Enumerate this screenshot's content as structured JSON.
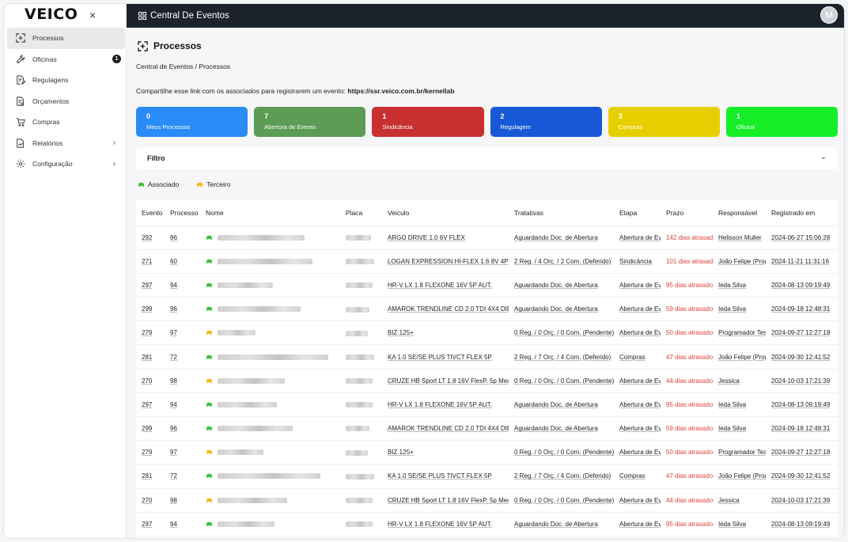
{
  "app": {
    "logo": "VEICO",
    "close_symbol": "×",
    "topbar_title": "Central De Eventos",
    "avatar_letter": "M"
  },
  "sidebar": {
    "items": [
      {
        "label": "Processos",
        "icon": "processos-icon",
        "active": true
      },
      {
        "label": "Oficinas",
        "icon": "wrench-icon",
        "badge": "1"
      },
      {
        "label": "Regulagens",
        "icon": "document-edit-icon"
      },
      {
        "label": "Orçamentos",
        "icon": "document-money-icon"
      },
      {
        "label": "Compras",
        "icon": "cart-icon"
      },
      {
        "label": "Relatórios",
        "icon": "report-icon",
        "chevron": "›"
      },
      {
        "label": "Configuração",
        "icon": "gear-icon",
        "chevron": "›"
      }
    ]
  },
  "page": {
    "title": "Processos",
    "breadcrumb": "Central de Eventos  /  Processos",
    "share_text": "Compartilhe esse link com os associados para registrarem um evento:",
    "share_link": "https://ssr.veico.com.br/kernellab"
  },
  "cards": [
    {
      "count": "0",
      "label": "Meus Processos",
      "color": "#2a8cf7"
    },
    {
      "count": "7",
      "label": "Abertura de Evento",
      "color": "#5c9c56"
    },
    {
      "count": "1",
      "label": "Sindicância",
      "color": "#c8302f"
    },
    {
      "count": "2",
      "label": "Regulagem",
      "color": "#1658d6"
    },
    {
      "count": "3",
      "label": "Compras",
      "color": "#e6cf00"
    },
    {
      "count": "1",
      "label": "Oficina",
      "color": "#15ee27"
    }
  ],
  "filter": {
    "label": "Filtro"
  },
  "legend": {
    "associado": {
      "label": "Associado",
      "color": "#3cc23c"
    },
    "terceiro": {
      "label": "Terceiro",
      "color": "#f2bb1a"
    }
  },
  "table": {
    "columns": [
      "Evento",
      "Processo",
      "Nome",
      "Placa",
      "Veiculo",
      "Tratativas",
      "Etapa",
      "Prazo",
      "Responsável",
      "Registrado em"
    ],
    "rows": [
      {
        "evento": "292",
        "processo": "86",
        "type": "associado",
        "veiculo": "ARGO DRIVE 1.0 6V FLEX",
        "tratativas": "Aguardando Doc. de Abertura",
        "etapa": "Abertura de Evento",
        "prazo": "142 dias atrasados",
        "responsavel": "Helisson Muller",
        "registrado": "2024-06-27 15:06:28"
      },
      {
        "evento": "271",
        "processo": "60",
        "type": "associado",
        "veiculo": "LOGAN EXPRESSION HI-FLEX 1.6 8V 4P",
        "tratativas": "2 Reg. / 4 Orç. / 2 Com. (Deferido)",
        "etapa": "Sindicância",
        "prazo": "101 dias atrasados",
        "responsavel": "João Felipe (Programador)",
        "registrado": "2024-11-21 11:31:16"
      },
      {
        "evento": "297",
        "processo": "94",
        "type": "associado",
        "veiculo": "HR-V LX 1.8 FLEXONE 16V 5P AUT.",
        "tratativas": "Aguardando Doc. de Abertura",
        "etapa": "Abertura de Evento",
        "prazo": "95 dias atrasados",
        "responsavel": "Ieda Silva",
        "registrado": "2024-08-13 09:19:49"
      },
      {
        "evento": "299",
        "processo": "96",
        "type": "associado",
        "veiculo": "AMAROK TRENDLINE CD 2.0 TDI 4X4 DIESEL AUT.",
        "tratativas": "Aguardando Doc. de Abertura",
        "etapa": "Abertura de Evento",
        "prazo": "59 dias atrasados",
        "responsavel": "Ieda Silva",
        "registrado": "2024-09-18 12:48:31"
      },
      {
        "evento": "279",
        "processo": "97",
        "type": "terceiro",
        "veiculo": "BIZ 125+",
        "tratativas": "0 Reg. / 0 Orç. / 0 Com. (Pendente)",
        "etapa": "Abertura de Evento",
        "prazo": "50 dias atrasados",
        "responsavel": "Programador Testador",
        "registrado": "2024-09-27 12:27:18"
      },
      {
        "evento": "281",
        "processo": "72",
        "type": "associado",
        "veiculo": "KA 1.0 SE/SE PLUS TIVCT FLEX 5P",
        "tratativas": "2 Reg. / 7 Orç. / 4 Com. (Deferido)",
        "etapa": "Compras",
        "prazo": "47 dias atrasados",
        "responsavel": "João Felipe (Programador)",
        "registrado": "2024-09-30 12:41:52"
      },
      {
        "evento": "270",
        "processo": "98",
        "type": "terceiro",
        "veiculo": "CRUZE HB Sport LT 1.8 16V FlexP. 5p Mec",
        "tratativas": "0 Reg. / 0 Orç. / 0 Com. (Pendente)",
        "etapa": "Abertura de Evento",
        "prazo": "44 dias atrasados",
        "responsavel": "Jessica",
        "registrado": "2024-10-03 17:21:39"
      },
      {
        "evento": "297",
        "processo": "94",
        "type": "associado",
        "veiculo": "HR-V LX 1.8 FLEXONE 16V 5P AUT.",
        "tratativas": "Aguardando Doc. de Abertura",
        "etapa": "Abertura de Evento",
        "prazo": "95 dias atrasados",
        "responsavel": "Ieda Silva",
        "registrado": "2024-08-13 09:19:49"
      },
      {
        "evento": "299",
        "processo": "96",
        "type": "associado",
        "veiculo": "AMAROK TRENDLINE CD 2.0 TDI 4X4 DIESEL AUT.",
        "tratativas": "Aguardando Doc. de Abertura",
        "etapa": "Abertura de Evento",
        "prazo": "59 dias atrasados",
        "responsavel": "Ieda Silva",
        "registrado": "2024-09-18 12:48:31"
      },
      {
        "evento": "279",
        "processo": "97",
        "type": "terceiro",
        "veiculo": "BIZ 125+",
        "tratativas": "0 Reg. / 0 Orç. / 0 Com. (Pendente)",
        "etapa": "Abertura de Evento",
        "prazo": "50 dias atrasados",
        "responsavel": "Programador Testador",
        "registrado": "2024-09-27 12:27:18"
      },
      {
        "evento": "281",
        "processo": "72",
        "type": "associado",
        "veiculo": "KA 1.0 SE/SE PLUS TIVCT FLEX 5P",
        "tratativas": "2 Reg. / 7 Orç. / 4 Com. (Deferido)",
        "etapa": "Compras",
        "prazo": "47 dias atrasados",
        "responsavel": "João Felipe (Programador)",
        "registrado": "2024-09-30 12:41:52"
      },
      {
        "evento": "270",
        "processo": "98",
        "type": "terceiro",
        "veiculo": "CRUZE HB Sport LT 1.8 16V FlexP. 5p Mec",
        "tratativas": "0 Reg. / 0 Orç. / 0 Com. (Pendente)",
        "etapa": "Abertura de Evento",
        "prazo": "44 dias atrasados",
        "responsavel": "Jessica",
        "registrado": "2024-10-03 17:21:39"
      },
      {
        "evento": "297",
        "processo": "94",
        "type": "associado",
        "veiculo": "HR-V LX 1.8 FLEXONE 16V 5P AUT.",
        "tratativas": "Aguardando Doc. de Abertura",
        "etapa": "Abertura de Evento",
        "prazo": "95 dias atrasados",
        "responsavel": "Ieda Silva",
        "registrado": "2024-08-13 09:19:49"
      }
    ]
  }
}
